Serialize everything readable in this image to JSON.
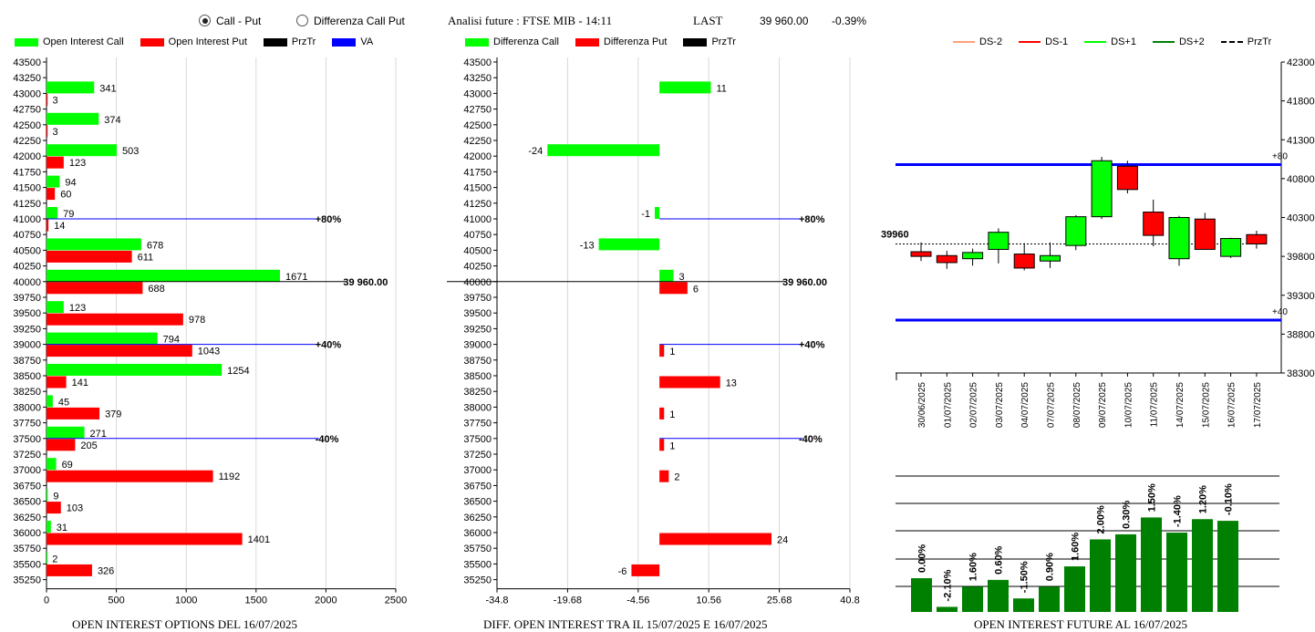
{
  "header": {
    "mode_options": [
      "Call - Put",
      "Differenza Call Put"
    ],
    "selected_mode": 0,
    "analysis_label": "Analisi future : FTSE MIB - 14:11",
    "last_label": "LAST",
    "last_value": "39 960.00",
    "change": "-0.39%"
  },
  "colors": {
    "call": "#00ff00",
    "put": "#ff0000",
    "przTr": "#000000",
    "va": "#0000ff",
    "dark_green": "#008000"
  },
  "legend1": [
    "Open Interest Call",
    "Open Interest Put",
    "PrzTr",
    "VA"
  ],
  "legend2": [
    "Differenza Call",
    "Differenza Put",
    "PrzTr"
  ],
  "legend3": [
    "DS-2",
    "DS-1",
    "DS+1",
    "DS+2",
    "PrzTr"
  ],
  "chart_data": [
    {
      "type": "bar",
      "orientation": "horizontal",
      "title": "OPEN INTEREST OPTIONS DEL 16/07/2025",
      "strike_ticks": [
        "43500",
        "43250",
        "43000",
        "42750",
        "42500",
        "42250",
        "42000",
        "41750",
        "41500",
        "41250",
        "41000",
        "40750",
        "40500",
        "40250",
        "40000",
        "39750",
        "39500",
        "39250",
        "39000",
        "38750",
        "38500",
        "38250",
        "38000",
        "37750",
        "37500",
        "37250",
        "37000",
        "36750",
        "36500",
        "36250",
        "36000",
        "35750",
        "35500",
        "35250"
      ],
      "categories": [
        43000,
        42500,
        42000,
        41500,
        41000,
        40500,
        40000,
        39500,
        39000,
        38500,
        38000,
        37500,
        37000,
        36500,
        36000,
        35500
      ],
      "series": [
        {
          "name": "Open Interest Call",
          "values": [
            341,
            374,
            503,
            94,
            79,
            678,
            1671,
            123,
            794,
            1254,
            45,
            271,
            69,
            9,
            31,
            2
          ]
        },
        {
          "name": "Open Interest Put",
          "values": [
            3,
            3,
            123,
            60,
            14,
            611,
            688,
            978,
            1043,
            141,
            379,
            205,
            1192,
            103,
            1401,
            326
          ]
        }
      ],
      "x_ticks": [
        "0",
        "500",
        "1000",
        "1500",
        "2000",
        "2500"
      ],
      "xlim": [
        0,
        2500
      ],
      "ref_lines": [
        {
          "label": "+80%",
          "strike": 41000,
          "end": 1950,
          "color": "#0000ff"
        },
        {
          "label": "39 960.00",
          "strike": 40000,
          "end": 2150,
          "color": "#000000"
        },
        {
          "label": "+40%",
          "strike": 39000,
          "end": 1950,
          "color": "#0000ff"
        },
        {
          "label": "-40%",
          "strike": 37500,
          "end": 1950,
          "color": "#0000ff"
        }
      ]
    },
    {
      "type": "bar",
      "orientation": "horizontal",
      "title": "DIFF. OPEN INTEREST TRA IL 15/07/2025 E 16/07/2025",
      "categories": [
        43000,
        42000,
        41000,
        40500,
        40000,
        39000,
        38500,
        38000,
        37500,
        37000,
        36000,
        35500
      ],
      "values": [
        11,
        -24,
        -1,
        -13,
        3,
        1,
        13,
        1,
        1,
        2,
        24,
        -6
      ],
      "value_series": [
        "call",
        "call",
        "call",
        "call",
        "call",
        "put",
        "put",
        "put",
        "put",
        "put",
        "put",
        "put"
      ],
      "put_value_on_40000": 6,
      "x_ticks": [
        "-34.8",
        "-19.68",
        "-4.56",
        "10.56",
        "25.68",
        "40.8"
      ],
      "xlim": [
        -34.8,
        40.8
      ],
      "ref_lines": [
        {
          "label": "+80%",
          "strike": 41000,
          "color": "#0000ff"
        },
        {
          "label": "39 960.00",
          "strike": 40000,
          "color": "#000000"
        },
        {
          "label": "+40%",
          "strike": 39000,
          "color": "#0000ff"
        },
        {
          "label": "-40%",
          "strike": 37500,
          "color": "#0000ff"
        }
      ]
    },
    {
      "type": "candlestick",
      "dates": [
        "30/06/2025",
        "01/07/2025",
        "02/07/2025",
        "03/07/2025",
        "04/07/2025",
        "07/07/2025",
        "08/07/2025",
        "09/07/2025",
        "10/07/2025",
        "11/07/2025",
        "14/07/2025",
        "15/07/2025",
        "16/07/2025",
        "17/07/2025"
      ],
      "candles": [
        {
          "o": 39860,
          "h": 39980,
          "l": 39740,
          "c": 39800
        },
        {
          "o": 39810,
          "h": 39870,
          "l": 39640,
          "c": 39720
        },
        {
          "o": 39770,
          "h": 39900,
          "l": 39680,
          "c": 39850
        },
        {
          "o": 39890,
          "h": 40160,
          "l": 39710,
          "c": 40110
        },
        {
          "o": 39830,
          "h": 39970,
          "l": 39620,
          "c": 39650
        },
        {
          "o": 39740,
          "h": 39980,
          "l": 39650,
          "c": 39810
        },
        {
          "o": 39940,
          "h": 40330,
          "l": 39880,
          "c": 40310
        },
        {
          "o": 40310,
          "h": 41080,
          "l": 40280,
          "c": 41030
        },
        {
          "o": 40960,
          "h": 41030,
          "l": 40610,
          "c": 40660
        },
        {
          "o": 40370,
          "h": 40530,
          "l": 39930,
          "c": 40070
        },
        {
          "o": 39770,
          "h": 40320,
          "l": 39680,
          "c": 40300
        },
        {
          "o": 40280,
          "h": 40360,
          "l": 39920,
          "c": 39890
        },
        {
          "o": 39800,
          "h": 40040,
          "l": 39780,
          "c": 40030
        },
        {
          "o": 40080,
          "h": 40130,
          "l": 39900,
          "c": 39960
        }
      ],
      "y_ticks": [
        "42300",
        "41800",
        "41300",
        "40800",
        "40300",
        "39800",
        "39300",
        "38800",
        "38300"
      ],
      "ylim": [
        38300,
        42300
      ],
      "price_label": "39960",
      "price": 39960,
      "levels": [
        {
          "label": "+80",
          "value": 40980
        },
        {
          "label": "+40",
          "value": 38980
        }
      ]
    },
    {
      "type": "bar",
      "title": "OPEN INTEREST FUTURE AL 16/07/2025",
      "values": [
        20,
        3,
        15,
        19,
        8,
        15,
        27,
        43,
        46,
        56,
        47,
        55,
        54
      ],
      "labels": [
        "0.00%",
        "-2.10%",
        "1.60%",
        "0.60%",
        "-1.50%",
        "0.90%",
        "1.60%",
        "2.00%",
        "0.30%",
        "1.50%",
        "-1.40%",
        "1.20%",
        "-0.10%"
      ]
    }
  ]
}
